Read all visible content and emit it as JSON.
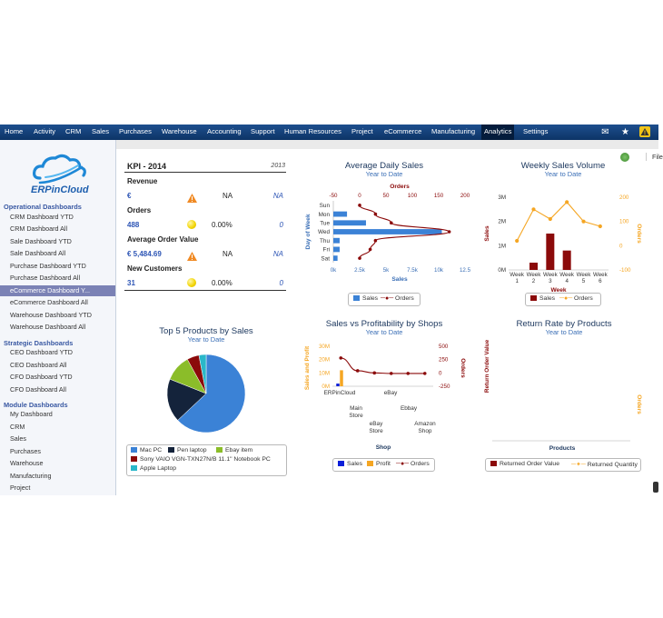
{
  "topnav": {
    "items": [
      "Home",
      "Activity",
      "CRM",
      "Sales",
      "Purchases",
      "Warehouse",
      "Accounting",
      "Support",
      "Human Resources",
      "Project",
      "eCommerce",
      "Manufacturing",
      "Analytics",
      "Settings"
    ],
    "active": "Analytics"
  },
  "toolbar": {
    "file_label": "File"
  },
  "sidebar": {
    "logo_text": "ERPinCloud",
    "sections": [
      {
        "title": "Operational Dashboards",
        "items": [
          "CRM Dashboard YTD",
          "CRM Dashboard All",
          "Sale Dashboard YTD",
          "Sale Dashboard All",
          "Purchase Dashboard YTD",
          "Purchase Dashboard All",
          "eCommerce Dashboard Y...",
          "eCommerce Dashboard All",
          "Warehouse Dashboard YTD",
          "Warehouse Dashboard All"
        ]
      },
      {
        "title": "Strategic Dashboards",
        "items": [
          "CEO Dashboard YTD",
          "CEO Dashboard All",
          "CFO Dashboard YTD",
          "CFO Dashboard All"
        ]
      },
      {
        "title": "Module Dashboards",
        "items": [
          "My Dashboard",
          "CRM",
          "Sales",
          "Purchases",
          "Warehouse",
          "Manufacturing",
          "Project"
        ]
      }
    ],
    "active_item": "eCommerce Dashboard Y..."
  },
  "kpi": {
    "title": "KPI - 2014",
    "year": "2013",
    "rows": [
      {
        "label": "Revenue",
        "value": "€",
        "mid": "NA",
        "prev": "NA",
        "status": "warning"
      },
      {
        "label": "Orders",
        "value": "488",
        "mid": "0.00%",
        "prev": "0",
        "status": "neutral"
      },
      {
        "label": "Average Order Value",
        "value": "€ 5,484.69",
        "mid": "NA",
        "prev": "NA",
        "status": "warning"
      },
      {
        "label": "New Customers",
        "value": "31",
        "mid": "0.00%",
        "prev": "0",
        "status": "neutral"
      }
    ]
  },
  "colors": {
    "sales_blue": "#3b82d6",
    "orders_red": "#8b0a0a",
    "profit_orange": "#f5a623",
    "nav_blue": "#1d4f8e",
    "active_side": "#7b82b5"
  },
  "chart_data": [
    {
      "id": "avg-daily-sales",
      "type": "bar",
      "title": "Average Daily Sales",
      "subtitle": "Year to Date",
      "categories": [
        "Sun",
        "Mon",
        "Tue",
        "Wed",
        "Thu",
        "Fri",
        "Sat"
      ],
      "ylabel": "Day of Week",
      "xlabel": "Sales",
      "x2label": "Orders",
      "series": [
        {
          "name": "Sales",
          "type": "bar",
          "values": [
            0,
            1300,
            3100,
            10300,
            600,
            600,
            400
          ]
        },
        {
          "name": "Orders",
          "type": "line",
          "values": [
            0,
            30,
            60,
            170,
            30,
            20,
            0
          ]
        }
      ],
      "xticks": [
        "0k",
        "2.5k",
        "5k",
        "7.5k",
        "10k",
        "12.5"
      ],
      "xlim": [
        0,
        12500
      ],
      "x2ticks": [
        "-50",
        "0",
        "50",
        "100",
        "150",
        "200"
      ],
      "x2lim": [
        -50,
        200
      ],
      "legend": [
        "Sales",
        "Orders"
      ],
      "legend_position": "bottom"
    },
    {
      "id": "weekly-sales-volume",
      "type": "bar",
      "title": "Weekly Sales Volume",
      "subtitle": "Year to Date",
      "categories": [
        "Week 1",
        "Week 2",
        "Week 3",
        "Week 4",
        "Week 5",
        "Week 6"
      ],
      "xlabel": "Week",
      "ylabel": "Sales",
      "y2label": "Orders",
      "series": [
        {
          "name": "Sales",
          "type": "bar",
          "values": [
            0,
            300000,
            1500000,
            800000,
            0,
            0
          ]
        },
        {
          "name": "Orders",
          "type": "line",
          "values": [
            20,
            150,
            110,
            180,
            100,
            80
          ]
        }
      ],
      "yticks": [
        "0M",
        "1M",
        "2M",
        "3M"
      ],
      "ylim": [
        0,
        3000000
      ],
      "y2ticks": [
        "-100",
        "0",
        "100",
        "200"
      ],
      "y2lim": [
        -100,
        200
      ],
      "legend": [
        "Sales",
        "Orders"
      ],
      "legend_position": "bottom"
    },
    {
      "id": "top5-products",
      "type": "pie",
      "title": "Top 5 Products by Sales",
      "subtitle": "Year to Date",
      "slices": [
        {
          "label": "Mac PC",
          "value": 63,
          "color": "#3b82d6"
        },
        {
          "label": "Pen laptop",
          "value": 18,
          "color": "#14233b"
        },
        {
          "label": "Ebay item",
          "value": 11,
          "color": "#8bbd29"
        },
        {
          "label": "Sony VAIO VGN-TXN27N/B 11.1\" Notebook PC",
          "value": 5,
          "color": "#8b0a0a"
        },
        {
          "label": "Apple Laptop",
          "value": 3,
          "color": "#2ab7c9"
        }
      ],
      "legend_position": "bottom"
    },
    {
      "id": "sales-vs-profitability",
      "type": "bar",
      "title": "Sales vs Profitability by Shops",
      "subtitle": "Year to Date",
      "categories": [
        "ERPinCloud",
        "Main Store",
        "eBay Store",
        "Ebbay",
        "Amazon Shop",
        "eBay"
      ],
      "xlabel": "Shop",
      "ylabel": "Sales and Profit",
      "y2label": "Orders",
      "series": [
        {
          "name": "Sales",
          "type": "bar",
          "values": [
            2000000,
            0,
            0,
            0,
            0,
            0
          ]
        },
        {
          "name": "Profit",
          "type": "bar",
          "values": [
            12000000,
            0,
            0,
            0,
            0,
            0
          ]
        },
        {
          "name": "Orders",
          "type": "line",
          "values": [
            280,
            40,
            0,
            -10,
            -10,
            -10
          ]
        }
      ],
      "yticks": [
        "0M",
        "10M",
        "20M",
        "30M"
      ],
      "ylim": [
        0,
        30000000
      ],
      "y2ticks": [
        "-250",
        "0",
        "250",
        "500"
      ],
      "y2lim": [
        -250,
        500
      ],
      "legend": [
        "Sales",
        "Profit",
        "Orders"
      ],
      "legend_position": "bottom"
    },
    {
      "id": "return-rate",
      "type": "bar",
      "title": "Return Rate by Products",
      "subtitle": "Year to Date",
      "xlabel": "Products",
      "ylabel": "Return Order Value",
      "y2label": "Orders",
      "series": [
        {
          "name": "Returned Order Value",
          "values": []
        },
        {
          "name": "Returned Quantity",
          "values": []
        }
      ],
      "legend": [
        "Returned Order Value",
        "Returned Quantity"
      ],
      "legend_position": "bottom"
    }
  ]
}
